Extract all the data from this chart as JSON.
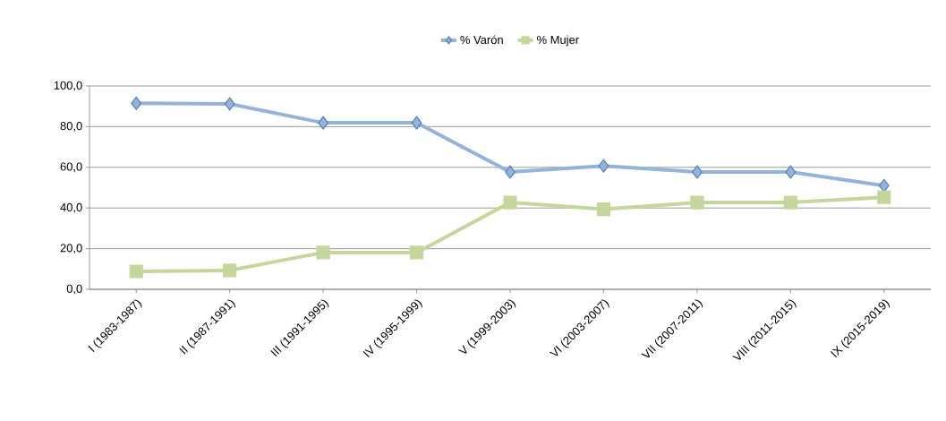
{
  "chart_data": {
    "type": "line",
    "categories": [
      "I (1983-1987)",
      "II (1987-1991)",
      "III (1991-1995)",
      "IV (1995-1999)",
      "V (1999-2003)",
      "VI (2003-2007)",
      "VII (2007-2011)",
      "VIII (2011-2015)",
      "IX (2015-2019)"
    ],
    "series": [
      {
        "name": "% Varón",
        "color": "#95b3d7",
        "marker": "diamond",
        "values": [
          91.5,
          91.2,
          81.9,
          81.9,
          57.7,
          60.7,
          57.7,
          57.7,
          51
        ]
      },
      {
        "name": "% Mujer",
        "color": "#c3d69b",
        "marker": "square",
        "values": [
          8.8,
          9.3,
          18.1,
          18.1,
          42.7,
          39.4,
          42.7,
          42.7,
          45.3
        ]
      }
    ],
    "ylim": [
      0,
      100
    ],
    "yticks": [
      {
        "value": 0,
        "label": "0,0"
      },
      {
        "value": 20,
        "label": "20,0"
      },
      {
        "value": 40,
        "label": "40,0"
      },
      {
        "value": 60,
        "label": "60,0"
      },
      {
        "value": 80,
        "label": "80,0"
      },
      {
        "value": 100,
        "label": "100,0"
      }
    ],
    "grid": "y",
    "legend": "top",
    "line_style": "solid"
  }
}
